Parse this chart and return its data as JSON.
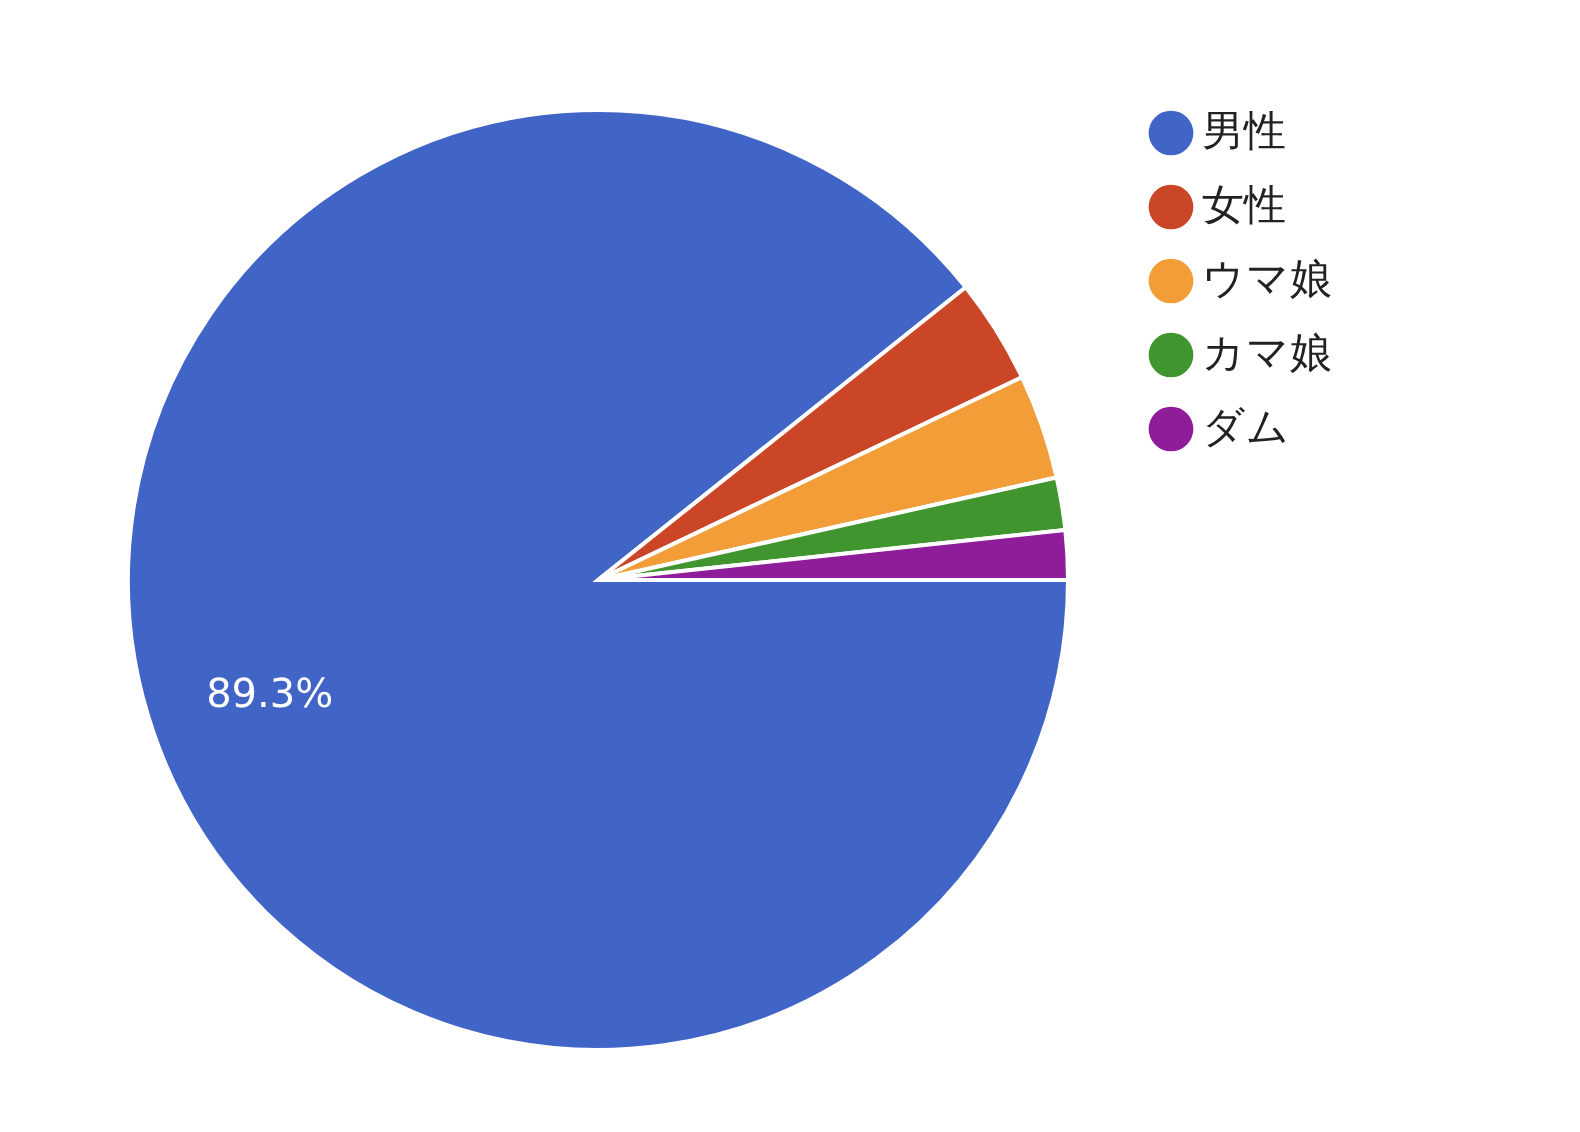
{
  "chart_data": {
    "type": "pie",
    "categories": [
      "男性",
      "女性",
      "ウマ娘",
      "カマ娘",
      "ダム"
    ],
    "values": [
      89.3,
      3.6,
      3.6,
      1.8,
      1.7
    ],
    "colors": [
      "#4065c6",
      "#cb4527",
      "#f29d38",
      "#41952f",
      "#8f1c98"
    ],
    "value_labels": [
      "89.3%",
      null,
      null,
      null,
      null
    ],
    "legend": "top right"
  }
}
